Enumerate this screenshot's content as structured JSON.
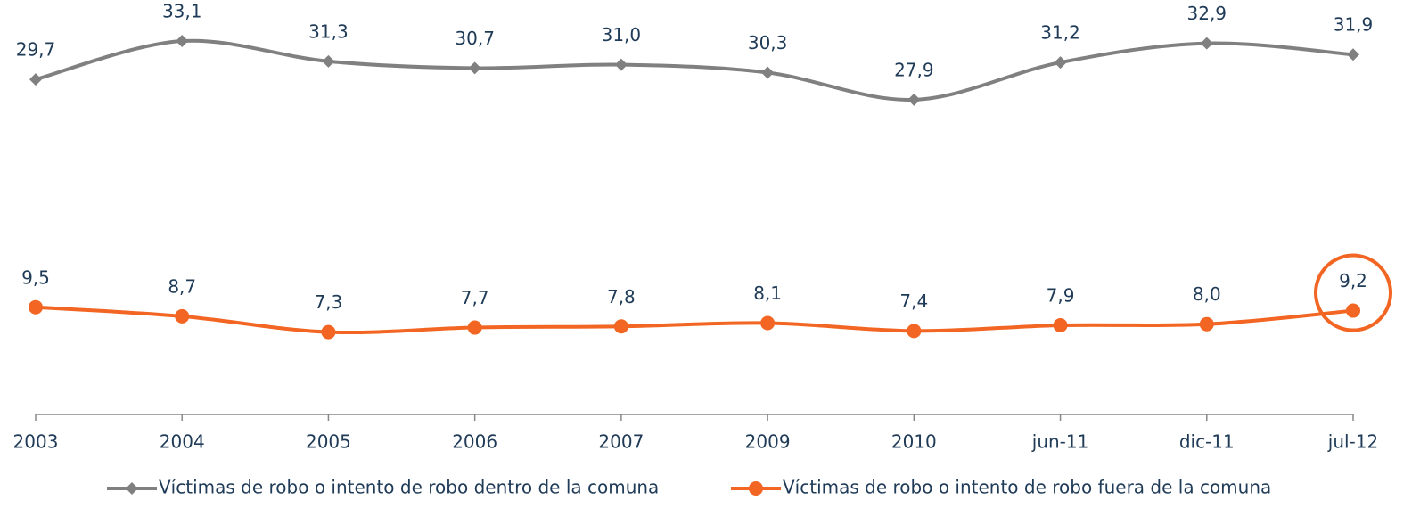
{
  "chart_data": {
    "type": "line",
    "categories": [
      "2003",
      "2004",
      "2005",
      "2006",
      "2007",
      "2009",
      "2010",
      "jun-11",
      "dic-11",
      "jul-12"
    ],
    "series": [
      {
        "name": "Víctimas de robo o intento de robo dentro de la comuna",
        "color": "#808080",
        "marker": "diamond",
        "values": [
          29.7,
          33.1,
          31.3,
          30.7,
          31.0,
          30.3,
          27.9,
          31.2,
          32.9,
          31.9
        ],
        "value_labels": [
          "29,7",
          "33,1",
          "31,3",
          "30,7",
          "31,0",
          "30,3",
          "27,9",
          "31,2",
          "32,9",
          "31,9"
        ]
      },
      {
        "name": "Víctimas de robo o intento de robo fuera de la comuna",
        "color": "#f26522",
        "marker": "circle",
        "values": [
          9.5,
          8.7,
          7.3,
          7.7,
          7.8,
          8.1,
          7.4,
          7.9,
          8.0,
          9.2
        ],
        "value_labels": [
          "9,5",
          "8,7",
          "7,3",
          "7,7",
          "7,8",
          "8,1",
          "7,4",
          "7,9",
          "8,0",
          "9,2"
        ]
      }
    ],
    "ylim": [
      0,
      35
    ],
    "grid": false,
    "legend": "bottom"
  }
}
